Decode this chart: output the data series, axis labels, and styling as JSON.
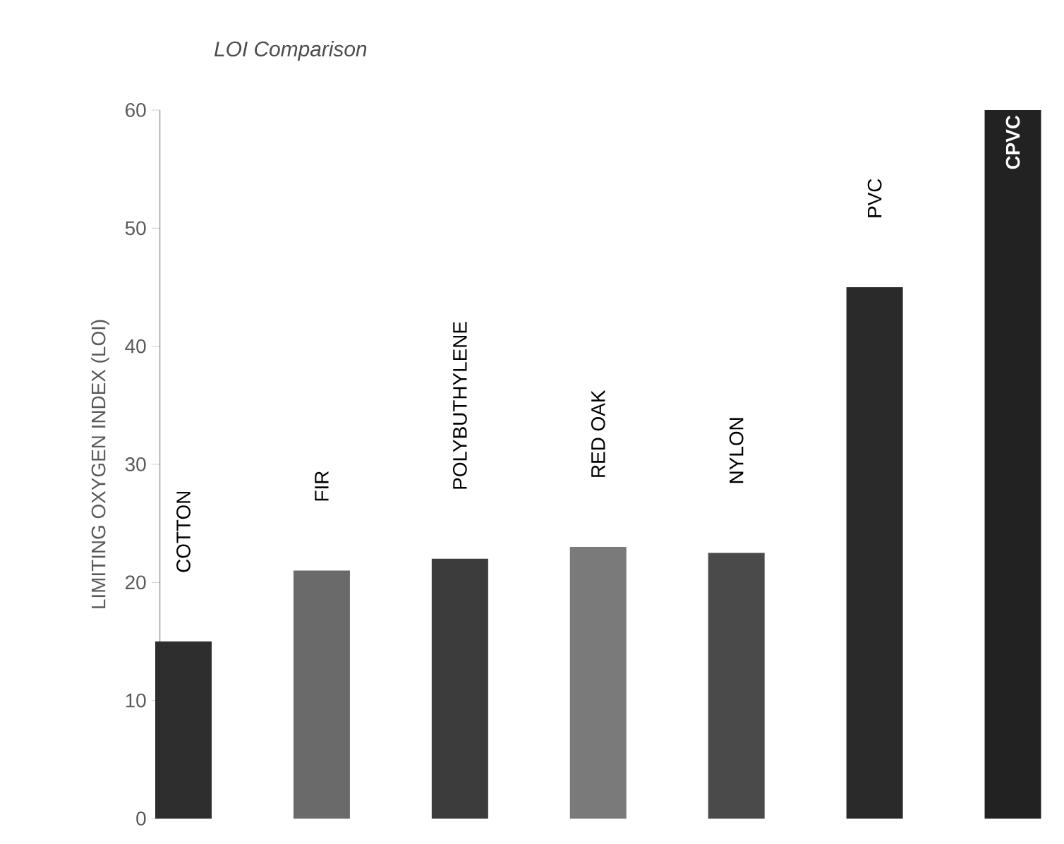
{
  "chart_data": {
    "type": "bar",
    "title": "LOI Comparison",
    "ylabel": "LIMITING OXYGEN INDEX (LOI)",
    "categories": [
      "COTTON",
      "FIR",
      "POLYBUTHYLENE",
      "RED OAK",
      "NYLON",
      "PVC",
      "CPVC"
    ],
    "values": [
      15,
      21,
      22,
      23,
      22.5,
      45,
      60
    ],
    "colors": [
      "#2e2e2e",
      "#6a6a6a",
      "#3c3c3c",
      "#7a7a7a",
      "#4a4a4a",
      "#2a2a2a",
      "#222222"
    ],
    "ylim": [
      0,
      60
    ],
    "yticks": [
      0,
      10,
      20,
      30,
      40,
      50,
      60
    ],
    "grid": false
  }
}
